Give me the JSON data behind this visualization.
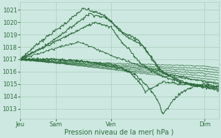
{
  "bg_color": "#cce8e0",
  "grid_color": "#aaccbb",
  "line_color": "#2d6b3c",
  "ylabel_ticks": [
    1013,
    1014,
    1015,
    1016,
    1017,
    1018,
    1019,
    1020,
    1021
  ],
  "ymin": 1012.2,
  "ymax": 1021.6,
  "xlabel": "Pression niveau de la mer( hPa )",
  "xtick_labels": [
    "Jeu",
    "Sam",
    "Ven",
    "Dim"
  ],
  "xtick_positions": [
    0.0,
    0.18,
    0.46,
    0.93
  ],
  "tick_fontsize": 6.0,
  "xlabel_fontsize": 7.0
}
